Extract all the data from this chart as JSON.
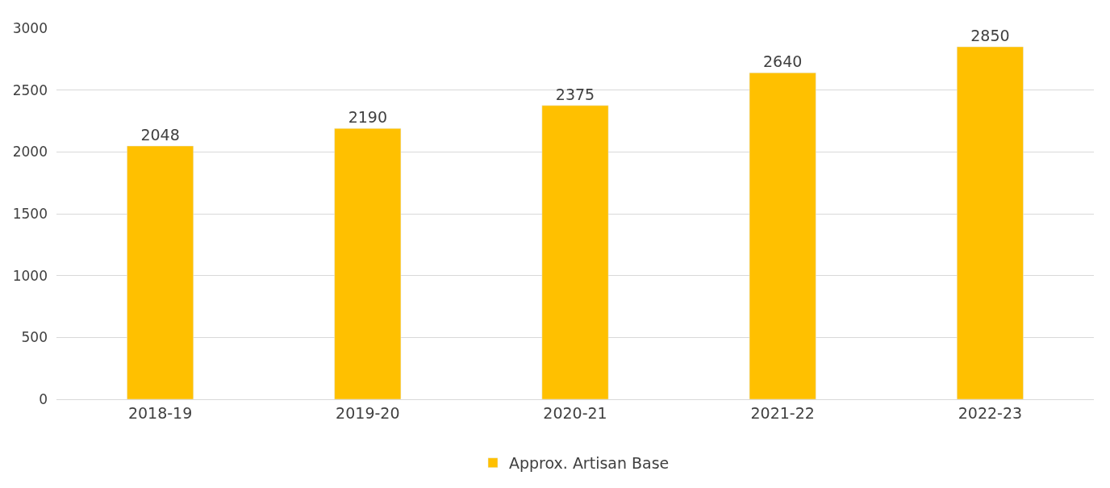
{
  "chart_data": {
    "type": "bar",
    "categories": [
      "2018-19",
      "2019-20",
      "2020-21",
      "2021-22",
      "2022-23"
    ],
    "series": [
      {
        "name": "Approx. Artisan Base",
        "color": "#ffc000",
        "values": [
          2048,
          2190,
          2375,
          2640,
          2850
        ]
      }
    ],
    "ylim": [
      0,
      3000
    ],
    "yticks": [
      0,
      500,
      1000,
      1500,
      2000,
      2500,
      3000
    ],
    "grid": "y",
    "legend": "bottom",
    "data_labels": true
  }
}
